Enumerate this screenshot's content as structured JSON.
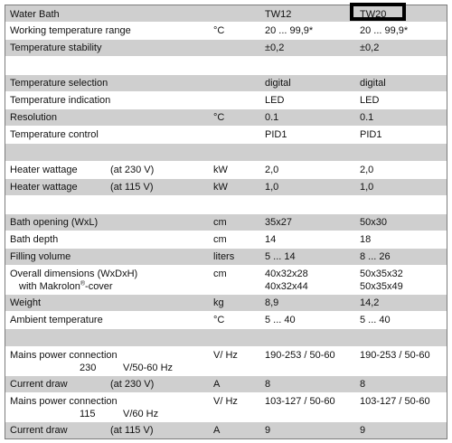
{
  "table": {
    "header": {
      "label": "Water Bath",
      "col1": "TW12",
      "col2": "TW20"
    },
    "rows": [
      {
        "label": "Working temperature range",
        "unit": "°C",
        "v1": "20 ... 99,9*",
        "v2": "20 ... 99,9*"
      },
      {
        "label": "Temperature stability",
        "unit": "",
        "v1": "±0,2",
        "v2": "±0,2"
      },
      {
        "label": "Temperature selection",
        "unit": "",
        "v1": "digital",
        "v2": "digital"
      },
      {
        "label": "Temperature indication",
        "unit": "",
        "v1": "LED",
        "v2": "LED"
      },
      {
        "label": "Resolution",
        "unit": "°C",
        "v1": "0.1",
        "v2": "0.1"
      },
      {
        "label": "Temperature control",
        "unit": "",
        "v1": "PID1",
        "v2": "PID1"
      },
      {
        "label": "Heater wattage",
        "cond": "(at 230 V)",
        "unit": "kW",
        "v1": "2,0",
        "v2": "2,0"
      },
      {
        "label": "Heater wattage",
        "cond": "(at 115 V)",
        "unit": "kW",
        "v1": "1,0",
        "v2": "1,0"
      },
      {
        "label": "Bath opening (WxL)",
        "unit": "cm",
        "v1": "35x27",
        "v2": "50x30"
      },
      {
        "label": "Bath depth",
        "unit": "cm",
        "v1": "14",
        "v2": "18"
      },
      {
        "label": "Filling volume",
        "unit": "liters",
        "v1": "5 ... 14",
        "v2": "8 ... 26"
      },
      {
        "label": "Overall dimensions (WxDxH)",
        "label2_pre": "with Makrolon",
        "reg": "®",
        "label2_post": "-cover",
        "unit": "cm",
        "v1": "40x32x28",
        "v1b": "40x32x44",
        "v2": "50x35x32",
        "v2b": "50x35x49"
      },
      {
        "label": "Weight",
        "unit": "kg",
        "v1": "8,9",
        "v2": "14,2"
      },
      {
        "label": "Ambient temperature",
        "unit": "°C",
        "v1": "5 ... 40",
        "v2": "5 ... 40"
      },
      {
        "label": "Mains power connection",
        "label2a": "230",
        "label2b": "V/50-60 Hz",
        "unit": "V/ Hz",
        "v1": "190-253 / 50-60",
        "v2": "190-253 / 50-60"
      },
      {
        "label": "Current draw",
        "cond": "(at 230 V)",
        "unit": "A",
        "v1": "8",
        "v2": "8"
      },
      {
        "label": "Mains power connection",
        "label2a": "115",
        "label2b": "V/60 Hz",
        "unit": "V/ Hz",
        "v1": "103-127 / 50-60",
        "v2": "103-127 / 50-60"
      },
      {
        "label": "Current draw",
        "cond": "(at 115 V)",
        "unit": "A",
        "v1": "9",
        "v2": "9"
      }
    ]
  }
}
